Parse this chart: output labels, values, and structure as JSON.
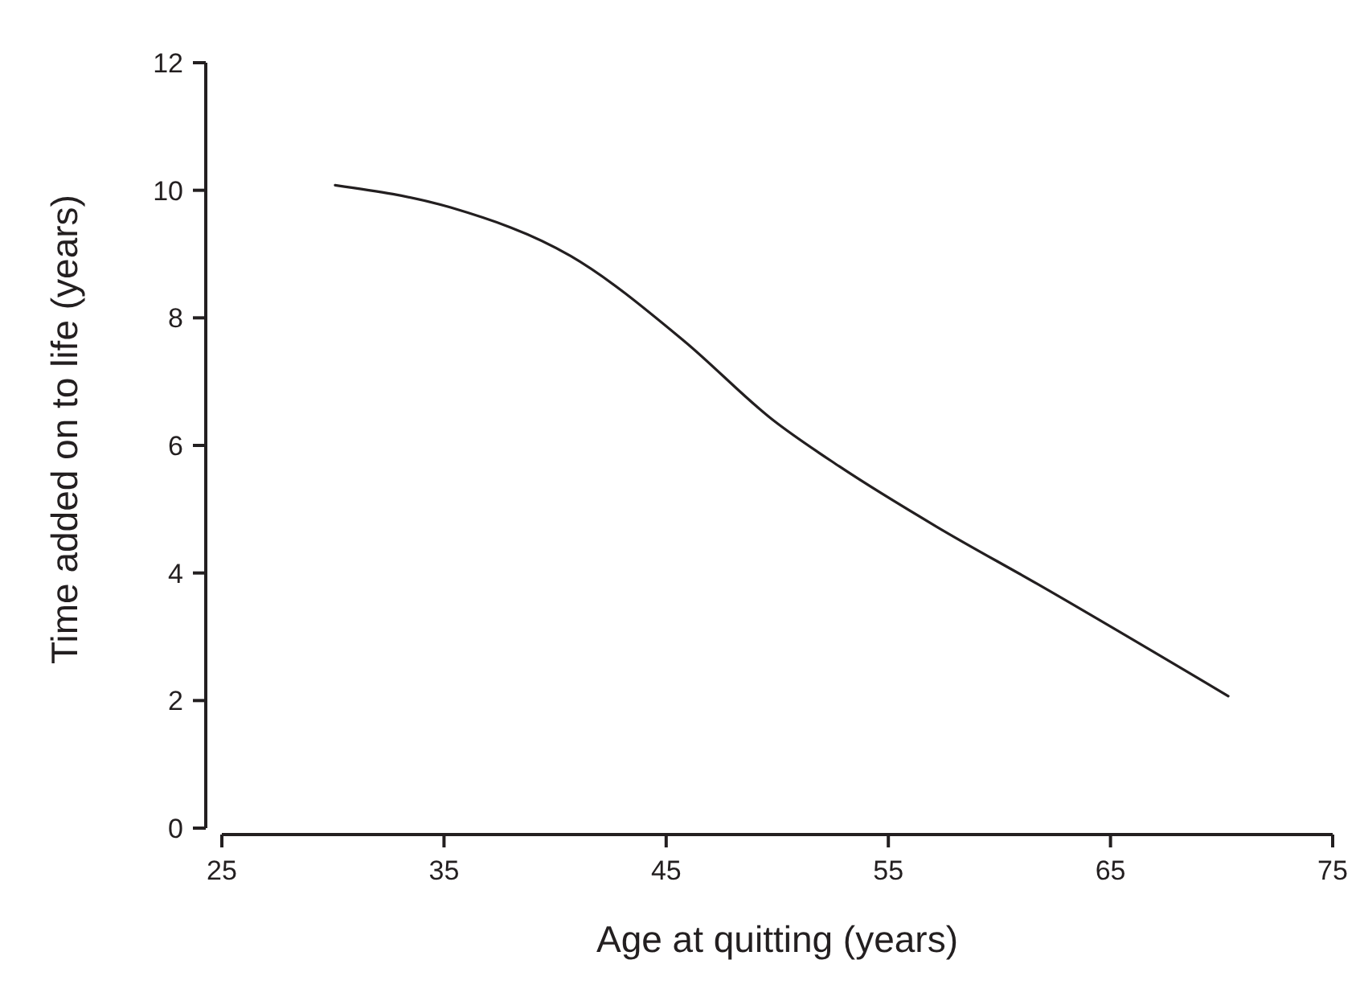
{
  "chart_data": {
    "type": "line",
    "xlabel": "Age at quitting (years)",
    "ylabel": "Time added on to life (years)",
    "x": [
      30.1,
      35.3,
      40.7,
      45.8,
      49.8,
      52.8,
      57.2,
      61.7,
      70.3
    ],
    "series": [
      {
        "color": "#231f20",
        "values": [
          10.08,
          9.73,
          8.97,
          7.64,
          6.4,
          5.67,
          4.72,
          3.83,
          2.07
        ]
      }
    ],
    "xlim": [
      25,
      75
    ],
    "xticks": [
      25,
      35,
      45,
      55,
      65,
      75
    ],
    "ylim": [
      0,
      12
    ],
    "yticks": [
      0,
      2,
      4,
      6,
      8,
      10,
      12
    ],
    "line_style": "solid"
  }
}
